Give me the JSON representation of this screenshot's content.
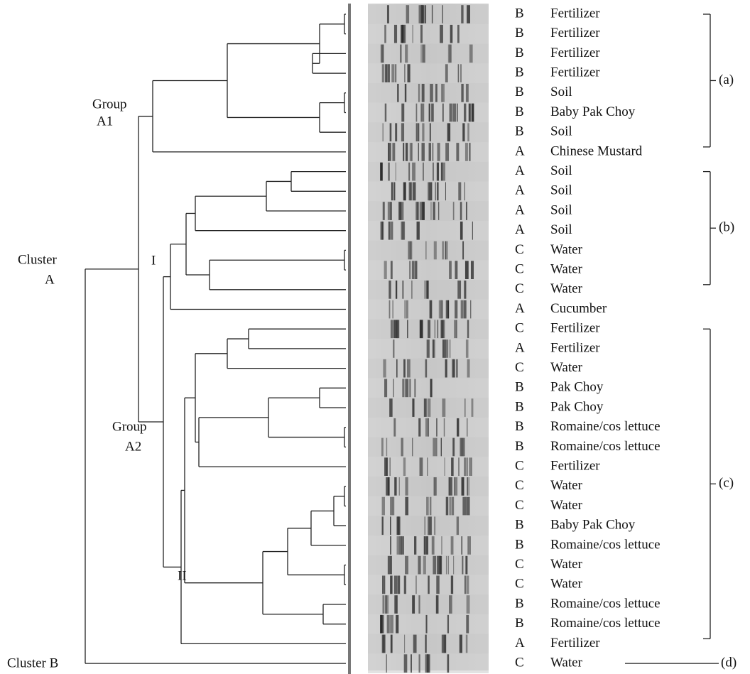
{
  "labels": {
    "group_a1": [
      "Group",
      "A1"
    ],
    "group_a2": [
      "Group",
      "A2"
    ],
    "cluster_a": [
      "Cluster",
      "A"
    ],
    "cluster_b": "Cluster B",
    "subgroup_1": "I",
    "subgroup_2": "II"
  },
  "rows": [
    {
      "site": "B",
      "sample": "Fertilizer"
    },
    {
      "site": "B",
      "sample": "Fertilizer"
    },
    {
      "site": "B",
      "sample": "Fertilizer"
    },
    {
      "site": "B",
      "sample": "Fertilizer"
    },
    {
      "site": "B",
      "sample": "Soil"
    },
    {
      "site": "B",
      "sample": "Baby Pak Choy"
    },
    {
      "site": "B",
      "sample": "Soil"
    },
    {
      "site": "A",
      "sample": "Chinese Mustard"
    },
    {
      "site": "A",
      "sample": "Soil"
    },
    {
      "site": "A",
      "sample": "Soil"
    },
    {
      "site": "A",
      "sample": "Soil"
    },
    {
      "site": "A",
      "sample": "Soil"
    },
    {
      "site": "C",
      "sample": "Water"
    },
    {
      "site": "C",
      "sample": "Water"
    },
    {
      "site": "C",
      "sample": "Water"
    },
    {
      "site": "A",
      "sample": "Cucumber"
    },
    {
      "site": "C",
      "sample": "Fertilizer"
    },
    {
      "site": "A",
      "sample": "Fertilizer"
    },
    {
      "site": "C",
      "sample": "Water"
    },
    {
      "site": "B",
      "sample": "Pak Choy"
    },
    {
      "site": "B",
      "sample": "Pak Choy"
    },
    {
      "site": "B",
      "sample": "Romaine/cos lettuce"
    },
    {
      "site": "B",
      "sample": "Romaine/cos lettuce"
    },
    {
      "site": "C",
      "sample": "Fertilizer"
    },
    {
      "site": "C",
      "sample": "Water"
    },
    {
      "site": "C",
      "sample": "Water"
    },
    {
      "site": "B",
      "sample": "Baby Pak Choy"
    },
    {
      "site": "B",
      "sample": "Romaine/cos lettuce"
    },
    {
      "site": "C",
      "sample": "Water"
    },
    {
      "site": "C",
      "sample": "Water"
    },
    {
      "site": "B",
      "sample": "Romaine/cos lettuce"
    },
    {
      "site": "B",
      "sample": "Romaine/cos lettuce"
    },
    {
      "site": "A",
      "sample": "Fertilizer"
    },
    {
      "site": "C",
      "sample": "Water"
    }
  ],
  "groups": [
    {
      "label": "(a)"
    },
    {
      "label": "(b)"
    },
    {
      "label": "(c)"
    },
    {
      "label": "(d)"
    }
  ]
}
